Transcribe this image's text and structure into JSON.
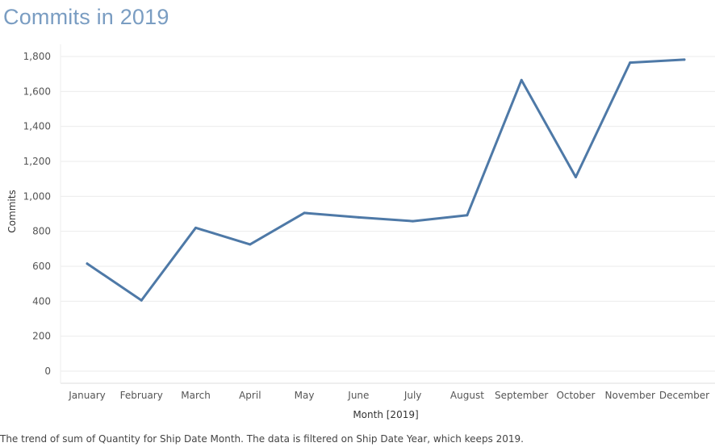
{
  "title": "Commits in 2019",
  "caption": "The trend of sum of Quantity for Ship Date Month. The data is filtered on Ship Date Year, which keeps 2019.",
  "colors": {
    "line": "#4e79a7",
    "title": "#7a9dc2",
    "grid": "#ebebeb"
  },
  "chart_data": {
    "type": "line",
    "title": "Commits in 2019",
    "xlabel": "Month [2019]",
    "ylabel": "Commits",
    "ylim": [
      0,
      1800
    ],
    "yticks": [
      0,
      200,
      400,
      600,
      800,
      1000,
      1200,
      1400,
      1600,
      1800
    ],
    "ytick_labels": [
      "0",
      "200",
      "400",
      "600",
      "800",
      "1,000",
      "1,200",
      "1,400",
      "1,600",
      "1,800"
    ],
    "grid": true,
    "categories": [
      "January",
      "February",
      "March",
      "April",
      "May",
      "June",
      "July",
      "August",
      "September",
      "October",
      "November",
      "December"
    ],
    "series": [
      {
        "values": [
          615,
          405,
          820,
          725,
          905,
          880,
          858,
          892,
          1665,
          1110,
          1765,
          1782
        ]
      }
    ]
  }
}
